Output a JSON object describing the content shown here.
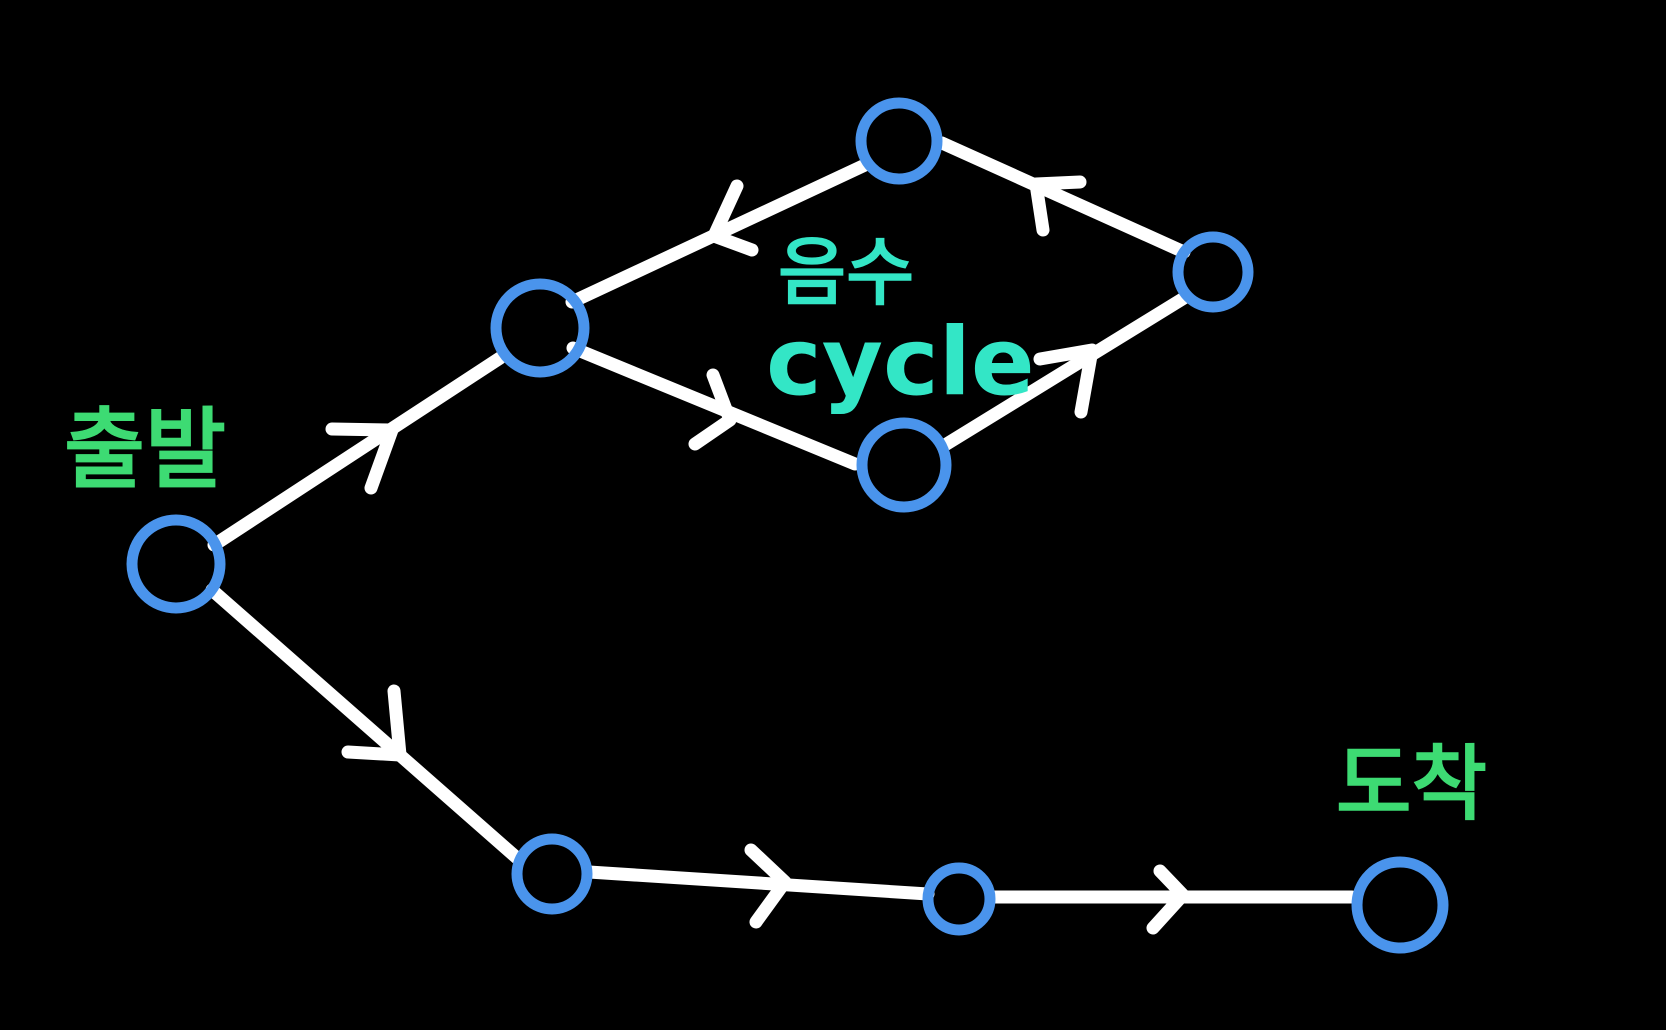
{
  "colors": {
    "background": "#000000",
    "node_stroke": "#4a94ec",
    "edge": "#ffffff",
    "label_green": "#3ddb73",
    "label_teal": "#33e6c6"
  },
  "labels": {
    "start": "출발",
    "end": "도착",
    "cycle_line1": "음수",
    "cycle_line2": "cycle"
  },
  "graph": {
    "nodes": [
      "start",
      "n1",
      "n2",
      "n3",
      "n4",
      "n5",
      "n6",
      "end"
    ],
    "edges": [
      {
        "from": "start",
        "to": "n1"
      },
      {
        "from": "n1",
        "to": "n4"
      },
      {
        "from": "n4",
        "to": "n3"
      },
      {
        "from": "n3",
        "to": "n2"
      },
      {
        "from": "n2",
        "to": "n1"
      },
      {
        "from": "start",
        "to": "n5"
      },
      {
        "from": "n5",
        "to": "n6"
      },
      {
        "from": "n6",
        "to": "end"
      }
    ]
  }
}
